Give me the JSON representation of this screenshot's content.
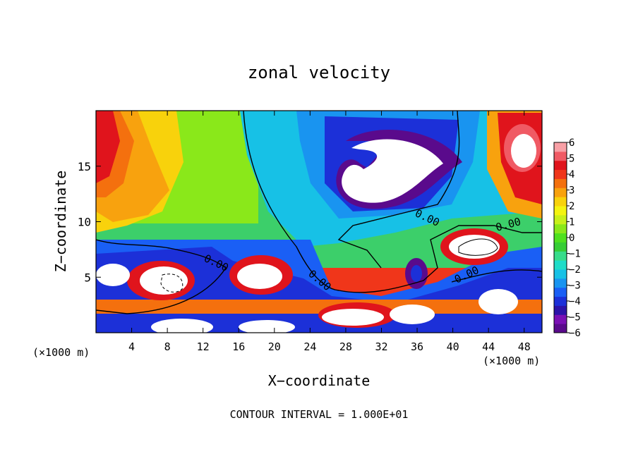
{
  "chart_data": {
    "type": "heatmap",
    "title": "zonal velocity",
    "xlabel": "X−coordinate",
    "ylabel": "Z−coordinate",
    "x_unit_left": "(×1000 m)",
    "x_unit_right": "(×1000 m)",
    "footer": "CONTOUR INTERVAL = 1.000E+01",
    "xlim": [
      0,
      50
    ],
    "ylim": [
      0,
      20
    ],
    "x_ticks": [
      4,
      8,
      12,
      16,
      20,
      24,
      28,
      32,
      36,
      40,
      44,
      48
    ],
    "y_ticks": [
      5,
      10,
      15
    ],
    "colorbar": {
      "min": -6,
      "max": 6,
      "ticks": [
        6,
        5,
        4,
        3,
        2,
        1,
        0,
        -1,
        -2,
        -3,
        -4,
        -5,
        -6
      ],
      "colors": [
        "#5a0a8c",
        "#7a10b4",
        "#2c13a8",
        "#1c30d8",
        "#1a5ff5",
        "#1994f0",
        "#17c1e6",
        "#1fdcc8",
        "#38dc8a",
        "#37cd35",
        "#4fe01e",
        "#8ae81a",
        "#c8f01a",
        "#f4f410",
        "#f8d20c",
        "#f8a20e",
        "#f4700e",
        "#f0361a",
        "#e0141c",
        "#f05a64",
        "#f8a0a6"
      ]
    },
    "contour_labels": [
      "0.00",
      "0.00",
      "0.00",
      "0.00",
      "0.00"
    ],
    "field_features": [
      {
        "kind": "max",
        "x": 2,
        "z": 15,
        "value": 5.5
      },
      {
        "kind": "max",
        "x": 47,
        "z": 16,
        "value": 6
      },
      {
        "kind": "min",
        "x": 32,
        "z": 14.5,
        "value": -6
      },
      {
        "kind": "max",
        "x": 8,
        "z": 5,
        "value": 6
      },
      {
        "kind": "max",
        "x": 19,
        "z": 5,
        "value": 6
      },
      {
        "kind": "max",
        "x": 44,
        "z": 7.5,
        "value": 6
      },
      {
        "kind": "max",
        "x": 30,
        "z": 1.5,
        "value": 6
      },
      {
        "kind": "max",
        "x": 34,
        "z": 1.2,
        "value": 6
      },
      {
        "kind": "max",
        "x": 45,
        "z": 2.8,
        "value": 6
      },
      {
        "kind": "min",
        "x": 35,
        "z": 5,
        "value": -6
      },
      {
        "kind": "min",
        "x": 10,
        "z": 5,
        "value": -6
      },
      {
        "kind": "min",
        "x": 42,
        "z": 3,
        "value": -5
      }
    ]
  }
}
